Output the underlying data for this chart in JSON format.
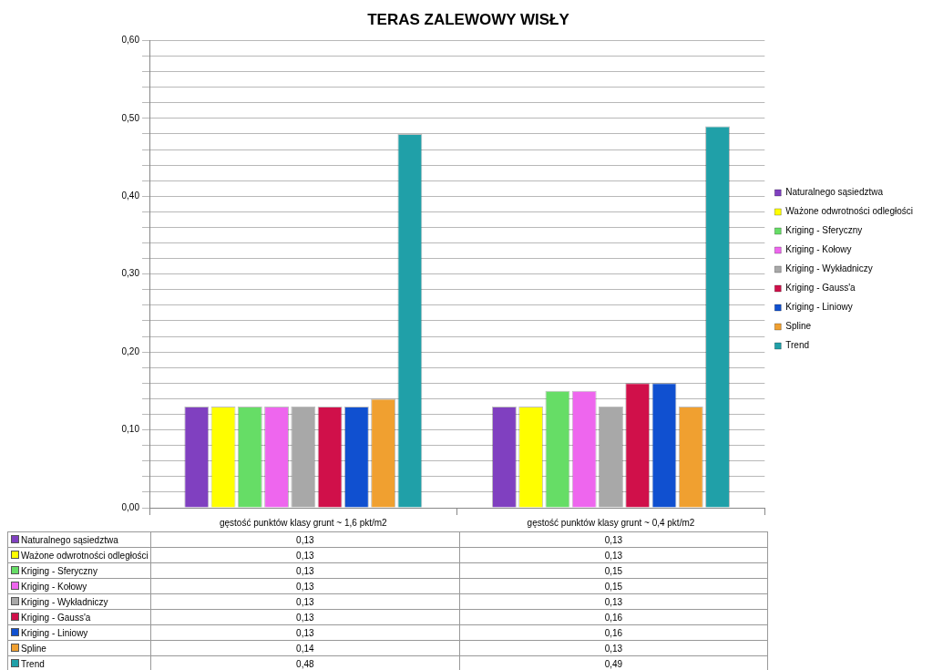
{
  "chart_data": {
    "type": "bar",
    "title": "TERAS ZALEWOWY WISŁY",
    "categories": [
      "gęstość punktów klasy grunt ~ 1,6 pkt/m2",
      "gęstość punktów klasy grunt ~ 0,4 pkt/m2"
    ],
    "series": [
      {
        "name": "Naturalnego sąsiedztwa",
        "color": "#8040c0",
        "values": [
          0.13,
          0.13
        ],
        "value_labels": [
          "0,13",
          "0,13"
        ]
      },
      {
        "name": "Ważone odwrotności odległości",
        "color": "#ffff00",
        "values": [
          0.13,
          0.13
        ],
        "value_labels": [
          "0,13",
          "0,13"
        ]
      },
      {
        "name": "Kriging - Sferyczny",
        "color": "#66dd66",
        "values": [
          0.13,
          0.15
        ],
        "value_labels": [
          "0,13",
          "0,15"
        ]
      },
      {
        "name": "Kriging - Kołowy",
        "color": "#ee66ee",
        "values": [
          0.13,
          0.15
        ],
        "value_labels": [
          "0,13",
          "0,15"
        ]
      },
      {
        "name": "Kriging - Wykładniczy",
        "color": "#a8a8a8",
        "values": [
          0.13,
          0.13
        ],
        "value_labels": [
          "0,13",
          "0,13"
        ]
      },
      {
        "name": "Kriging - Gauss'a",
        "color": "#d0104a",
        "values": [
          0.13,
          0.16
        ],
        "value_labels": [
          "0,13",
          "0,16"
        ]
      },
      {
        "name": "Kriging - Liniowy",
        "color": "#1050d0",
        "values": [
          0.13,
          0.16
        ],
        "value_labels": [
          "0,13",
          "0,16"
        ]
      },
      {
        "name": "Spline",
        "color": "#f0a030",
        "values": [
          0.14,
          0.13
        ],
        "value_labels": [
          "0,14",
          "0,13"
        ]
      },
      {
        "name": "Trend",
        "color": "#20a0a8",
        "values": [
          0.48,
          0.49
        ],
        "value_labels": [
          "0,48",
          "0,49"
        ]
      }
    ],
    "ylim": [
      0,
      0.6
    ],
    "yticks": [
      {
        "value": 0,
        "label": "0,00"
      },
      {
        "value": 0.02,
        "label": null
      },
      {
        "value": 0.04,
        "label": null
      },
      {
        "value": 0.06,
        "label": null
      },
      {
        "value": 0.08,
        "label": null
      },
      {
        "value": 0.1,
        "label": "0,10"
      },
      {
        "value": 0.12,
        "label": null
      },
      {
        "value": 0.14,
        "label": null
      },
      {
        "value": 0.16,
        "label": null
      },
      {
        "value": 0.18,
        "label": null
      },
      {
        "value": 0.2,
        "label": "0,20"
      },
      {
        "value": 0.22,
        "label": null
      },
      {
        "value": 0.24,
        "label": null
      },
      {
        "value": 0.26,
        "label": null
      },
      {
        "value": 0.28,
        "label": null
      },
      {
        "value": 0.3,
        "label": "0,30"
      },
      {
        "value": 0.32,
        "label": null
      },
      {
        "value": 0.34,
        "label": null
      },
      {
        "value": 0.36,
        "label": null
      },
      {
        "value": 0.38,
        "label": null
      },
      {
        "value": 0.4,
        "label": "0,40"
      },
      {
        "value": 0.42,
        "label": null
      },
      {
        "value": 0.44,
        "label": null
      },
      {
        "value": 0.46,
        "label": null
      },
      {
        "value": 0.48,
        "label": null
      },
      {
        "value": 0.5,
        "label": "0,50"
      },
      {
        "value": 0.52,
        "label": null
      },
      {
        "value": 0.54,
        "label": null
      },
      {
        "value": 0.56,
        "label": null
      },
      {
        "value": 0.58,
        "label": null
      },
      {
        "value": 0.6,
        "label": "0,60"
      }
    ],
    "grid": true,
    "legend": "right"
  }
}
